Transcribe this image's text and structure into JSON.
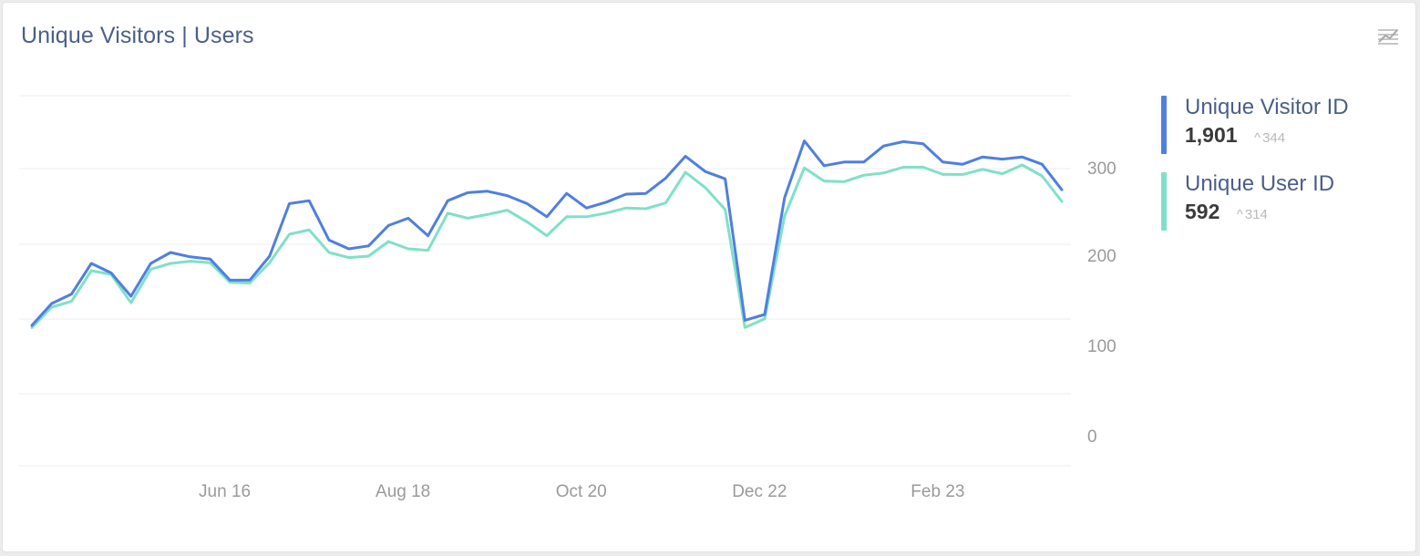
{
  "widget": {
    "title": "Unique Visitors | Users",
    "toggle_icon": "line-chart-toggle-icon"
  },
  "legend": [
    {
      "name": "Unique Visitor ID",
      "value": "1,901",
      "delta": "344",
      "delta_icon": "caret-up-icon",
      "color": "#4f7fe0"
    },
    {
      "name": "Unique User ID",
      "value": "592",
      "delta": "314",
      "delta_icon": "caret-up-icon",
      "color": "#7fe0c8"
    }
  ],
  "chart_data": {
    "type": "line",
    "x_labels": [
      "Jun 16",
      "Aug 18",
      "Oct 20",
      "Dec 22",
      "Feb 23"
    ],
    "x_label_index": [
      9,
      18,
      27,
      36,
      45
    ],
    "y_ticks": [
      0,
      100,
      200,
      300
    ],
    "ylim": [
      -20,
      395
    ],
    "grid": true,
    "legend_position": "right",
    "series": [
      {
        "name": "Unique Visitor ID",
        "color": "#4f7fe0",
        "values": [
          95,
          125,
          138,
          180,
          167,
          135,
          180,
          195,
          189,
          186,
          157,
          157,
          190,
          262,
          266,
          212,
          200,
          204,
          232,
          242,
          218,
          266,
          277,
          279,
          273,
          262,
          244,
          276,
          256,
          264,
          275,
          276,
          297,
          327,
          306,
          296,
          102,
          110,
          270,
          348,
          314,
          319,
          319,
          341,
          347,
          344,
          319,
          316,
          326,
          323,
          326,
          316,
          281
        ]
      },
      {
        "name": "Unique User ID",
        "color": "#7fe0c8",
        "values": [
          92,
          120,
          128,
          170,
          165,
          126,
          172,
          180,
          183,
          181,
          154,
          153,
          181,
          220,
          226,
          195,
          188,
          190,
          210,
          200,
          198,
          249,
          242,
          247,
          253,
          237,
          218,
          244,
          244,
          249,
          256,
          255,
          263,
          305,
          284,
          254,
          92,
          104,
          245,
          311,
          293,
          292,
          301,
          304,
          312,
          312,
          302,
          302,
          309,
          303,
          315,
          300,
          265
        ]
      }
    ]
  }
}
